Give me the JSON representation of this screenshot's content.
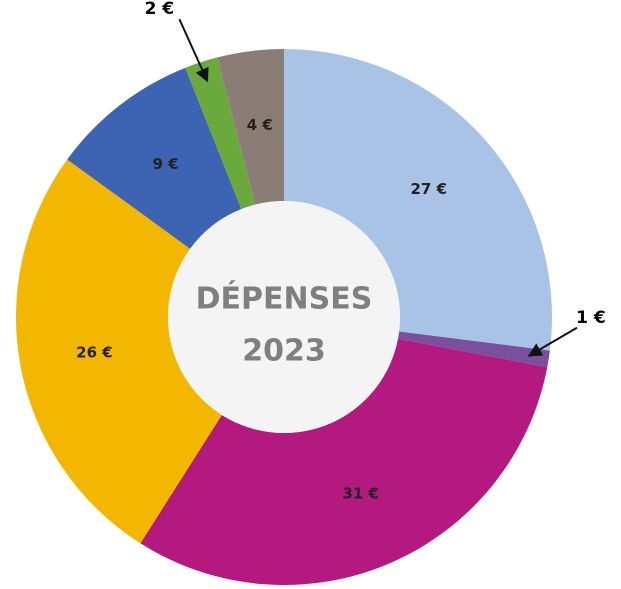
{
  "chart_data": {
    "type": "donut",
    "center_text": [
      "DÉPENSES",
      "2023"
    ],
    "categories": [
      null,
      null,
      null,
      null,
      null,
      null,
      null
    ],
    "values": [
      27,
      1,
      31,
      26,
      9,
      2,
      4
    ],
    "value_labels": [
      "27 €",
      "1 €",
      "31 €",
      "26 €",
      "9 €",
      "2 €",
      "4 €"
    ],
    "colors": [
      "#a8c3e5",
      "#7a4f9e",
      "#b4197f",
      "#f3b700",
      "#3d63b3",
      "#6aa93b",
      "#8b7c75"
    ],
    "start_angle": 0,
    "direction": "clockwise"
  }
}
